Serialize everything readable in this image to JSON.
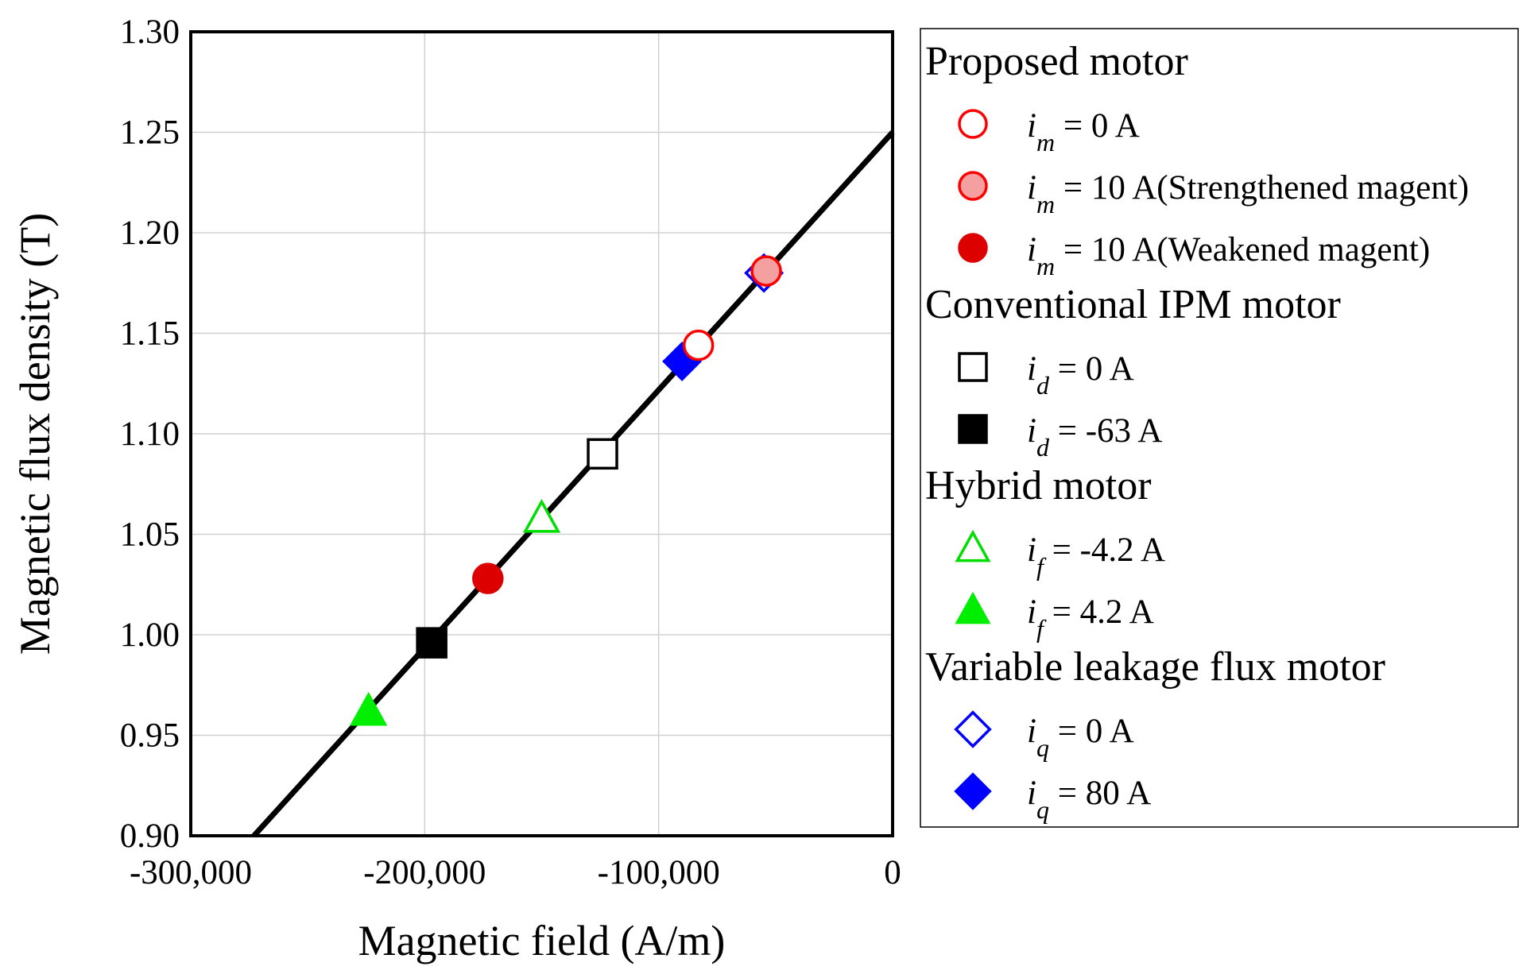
{
  "chart_data": {
    "type": "scatter",
    "title": "",
    "xlabel": "Magnetic field (A/m)",
    "ylabel": "Magnetic flux density (T)",
    "xlim": [
      -300000,
      0
    ],
    "ylim": [
      0.9,
      1.3
    ],
    "x_ticks": [
      -300000,
      -200000,
      -100000,
      0
    ],
    "x_tick_labels": [
      "-300,000",
      "-200,000",
      "-100,000",
      "0"
    ],
    "y_ticks": [
      0.9,
      0.95,
      1.0,
      1.05,
      1.1,
      1.15,
      1.2,
      1.25,
      1.3
    ],
    "y_tick_labels": [
      "0.90",
      "0.95",
      "1.00",
      "1.05",
      "1.10",
      "1.15",
      "1.20",
      "1.25",
      "1.30"
    ],
    "grid": true,
    "demag_line": {
      "x": [
        -273000,
        0
      ],
      "y": [
        0.9,
        1.25
      ]
    },
    "legend_position": "right",
    "legend_groups": [
      {
        "heading": "Proposed motor",
        "series": [
          {
            "id": "pm0",
            "var": "i",
            "sub": "m",
            "text": " = 0 A",
            "marker": "circle",
            "stroke": "#ff0000",
            "fill": "#ffffff",
            "x": -83000,
            "y": 1.144
          },
          {
            "id": "pms",
            "var": "i",
            "sub": "m",
            "text": " = 10 A(Strengthened magent)",
            "marker": "circle",
            "stroke": "#ff0000",
            "fill": "#f4a0a0",
            "x": -54000,
            "y": 1.181
          },
          {
            "id": "pmw",
            "var": "i",
            "sub": "m",
            "text": " = 10 A(Weakened magent)",
            "marker": "circle",
            "stroke": "#dd0000",
            "fill": "#dd0000",
            "x": -173000,
            "y": 1.028
          }
        ]
      },
      {
        "heading": "Conventional IPM motor",
        "series": [
          {
            "id": "ipm0",
            "var": "i",
            "sub": "d",
            "text": " = 0 A",
            "marker": "square",
            "stroke": "#000000",
            "fill": "#ffffff",
            "x": -124000,
            "y": 1.09
          },
          {
            "id": "ipm1",
            "var": "i",
            "sub": "d",
            "text": " = -63 A",
            "marker": "square",
            "stroke": "#000000",
            "fill": "#000000",
            "x": -197000,
            "y": 0.996
          }
        ]
      },
      {
        "heading": "Hybrid motor",
        "series": [
          {
            "id": "hy0",
            "var": "i",
            "sub": "f",
            "text": " = -4.2 A",
            "marker": "triangle",
            "stroke": "#00dd00",
            "fill": "#ffffff",
            "x": -150000,
            "y": 1.058
          },
          {
            "id": "hy1",
            "var": "i",
            "sub": "f",
            "text": " = 4.2 A",
            "marker": "triangle",
            "stroke": "#00ee00",
            "fill": "#00ee00",
            "x": -224000,
            "y": 0.962
          }
        ]
      },
      {
        "heading": "Variable leakage flux motor",
        "series": [
          {
            "id": "vl0",
            "var": "i",
            "sub": "q",
            "text": " = 0 A",
            "marker": "diamond",
            "stroke": "#0000ff",
            "fill": "#ffffff",
            "x": -55000,
            "y": 1.18
          },
          {
            "id": "vl1",
            "var": "i",
            "sub": "q",
            "text": " = 80 A",
            "marker": "diamond",
            "stroke": "#0000ff",
            "fill": "#0000ff",
            "x": -90000,
            "y": 1.136
          }
        ]
      }
    ]
  }
}
